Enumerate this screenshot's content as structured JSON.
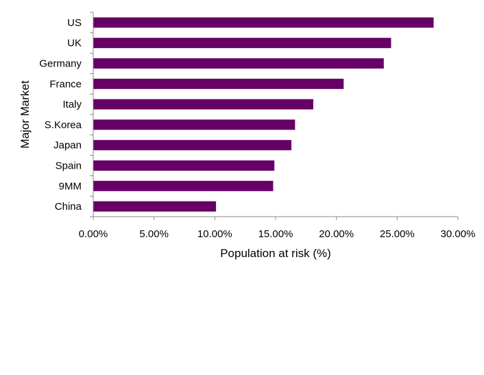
{
  "chart_data": {
    "type": "bar",
    "orientation": "horizontal",
    "categories": [
      "US",
      "UK",
      "Germany",
      "France",
      "Italy",
      "S.Korea",
      "Japan",
      "Spain",
      "9MM",
      "China"
    ],
    "values": [
      28.0,
      24.5,
      23.9,
      20.6,
      18.1,
      16.6,
      16.3,
      14.9,
      14.8,
      10.1
    ],
    "xlabel": "Population at risk (%)",
    "ylabel": "Major Market",
    "xlim": [
      0,
      30
    ],
    "xticks": [
      "0.00%",
      "5.00%",
      "10.00%",
      "15.00%",
      "20.00%",
      "25.00%",
      "30.00%"
    ],
    "grid": false,
    "legend": "none",
    "bar_color": "#660066"
  }
}
